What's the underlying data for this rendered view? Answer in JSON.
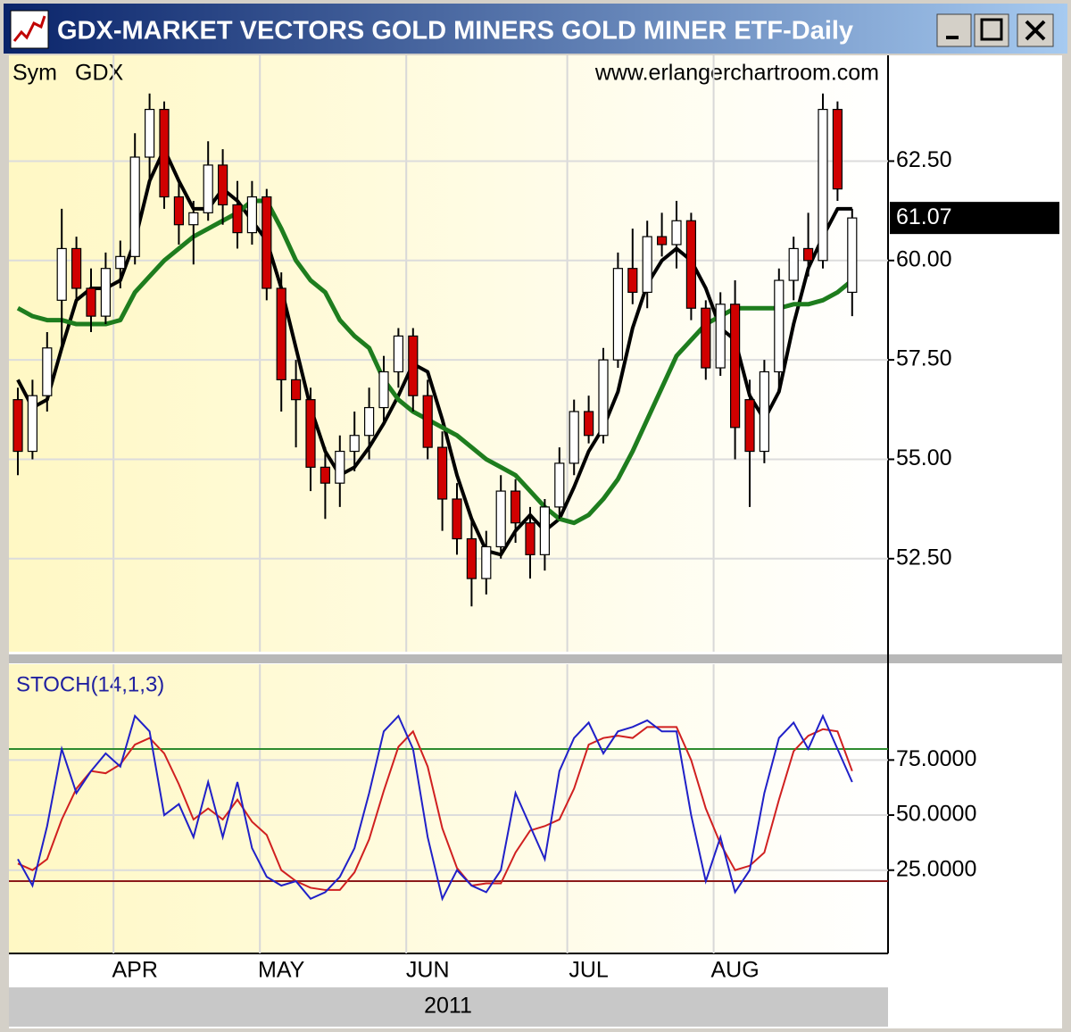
{
  "window_title": "GDX-MARKET VECTORS GOLD MINERS GOLD MINER ETF-Daily",
  "sym_label": "Sym",
  "symbol": "GDX",
  "watermark": "www.erlangerchartroom.com",
  "year": "2011",
  "chart_data": [
    {
      "type": "candlestick",
      "categories": [
        null,
        null,
        null,
        null,
        null,
        null,
        null,
        null,
        "APR",
        null,
        null,
        null,
        null,
        null,
        null,
        null,
        null,
        null,
        "MAY",
        null,
        null,
        null,
        null,
        null,
        null,
        null,
        null,
        null,
        "JUN",
        null,
        null,
        null,
        null,
        null,
        null,
        null,
        null,
        null,
        null,
        "JUL",
        null,
        null,
        null,
        null,
        null,
        null,
        null,
        null,
        null,
        "AUG",
        null,
        null,
        null,
        null,
        null,
        null,
        null,
        null
      ],
      "open": [
        56.5,
        55.2,
        56.6,
        59.0,
        60.3,
        59.3,
        58.6,
        59.8,
        60.1,
        62.6,
        63.8,
        61.6,
        60.9,
        61.2,
        62.4,
        61.4,
        60.7,
        61.6,
        59.3,
        57.0,
        56.5,
        54.8,
        54.4,
        55.2,
        55.6,
        56.3,
        57.2,
        58.1,
        56.6,
        55.3,
        54.0,
        53.0,
        52.0,
        52.8,
        54.2,
        53.4,
        52.6,
        53.8,
        54.9,
        56.2,
        55.6,
        57.5,
        59.8,
        59.2,
        60.6,
        60.4,
        61.0,
        58.8,
        57.3,
        58.9,
        56.5,
        55.2,
        57.2,
        59.5,
        60.3,
        60.0,
        63.8,
        59.2
      ],
      "high": [
        56.8,
        57.0,
        58.2,
        61.3,
        60.6,
        59.8,
        60.2,
        60.5,
        63.2,
        64.2,
        64.0,
        62.0,
        61.5,
        63.0,
        62.8,
        62.0,
        62.0,
        61.8,
        59.7,
        57.5,
        56.8,
        55.3,
        55.6,
        56.2,
        56.8,
        57.6,
        58.3,
        58.3,
        57.0,
        55.7,
        54.4,
        53.5,
        53.2,
        54.6,
        54.5,
        53.8,
        54.0,
        55.3,
        56.5,
        56.6,
        57.8,
        60.2,
        60.8,
        61.0,
        61.2,
        61.5,
        61.2,
        59.0,
        59.2,
        59.5,
        57.0,
        57.5,
        59.8,
        60.6,
        61.2,
        64.2,
        64.0,
        61.3
      ],
      "low": [
        54.6,
        55.0,
        56.2,
        57.8,
        59.0,
        58.2,
        58.4,
        59.3,
        59.9,
        62.0,
        61.3,
        60.4,
        59.9,
        61.0,
        60.9,
        60.3,
        60.4,
        59.0,
        56.2,
        55.3,
        54.2,
        53.5,
        53.8,
        54.7,
        55.0,
        55.9,
        56.8,
        56.2,
        55.0,
        53.2,
        52.6,
        51.3,
        51.6,
        52.5,
        52.9,
        52.0,
        52.2,
        53.5,
        54.6,
        55.4,
        55.4,
        57.3,
        58.9,
        58.8,
        60.1,
        59.8,
        58.5,
        57.0,
        57.1,
        55.0,
        53.8,
        54.9,
        56.8,
        59.0,
        59.6,
        59.8,
        61.5,
        58.6
      ],
      "close": [
        55.2,
        56.6,
        57.8,
        60.3,
        59.3,
        58.6,
        59.8,
        60.1,
        62.6,
        63.8,
        61.6,
        60.9,
        61.2,
        62.4,
        61.4,
        60.7,
        61.6,
        59.3,
        57.0,
        56.5,
        54.8,
        54.4,
        55.2,
        55.6,
        56.3,
        57.2,
        58.1,
        56.6,
        55.3,
        54.0,
        53.0,
        52.0,
        52.8,
        54.2,
        53.4,
        52.6,
        53.8,
        54.9,
        56.2,
        55.6,
        57.5,
        59.8,
        59.2,
        60.6,
        60.4,
        61.0,
        58.8,
        57.3,
        58.9,
        55.8,
        55.2,
        57.2,
        59.5,
        60.3,
        60.0,
        63.8,
        61.8,
        61.07
      ],
      "up_color": "#ffffff",
      "down_color": "#d00000",
      "overlays": [
        {
          "color": "#000000",
          "values": [
            57.0,
            56.3,
            56.5,
            57.8,
            59.0,
            59.3,
            59.3,
            59.5,
            60.5,
            62.0,
            62.8,
            62.0,
            61.3,
            61.3,
            61.8,
            61.5,
            61.0,
            60.5,
            59.3,
            57.8,
            56.3,
            55.2,
            54.6,
            54.8,
            55.3,
            55.9,
            56.6,
            57.4,
            57.2,
            56.0,
            54.6,
            53.5,
            52.7,
            52.6,
            53.2,
            53.6,
            53.2,
            53.5,
            54.3,
            55.2,
            55.8,
            56.7,
            58.3,
            59.4,
            60.0,
            60.3,
            60.0,
            59.3,
            58.3,
            58.0,
            56.6,
            56.0,
            56.7,
            58.4,
            59.8,
            60.6,
            61.3,
            61.3
          ]
        },
        {
          "color": "#1e7d1e",
          "values": [
            58.8,
            58.6,
            58.5,
            58.5,
            58.4,
            58.4,
            58.4,
            58.5,
            59.2,
            59.6,
            60.0,
            60.3,
            60.6,
            60.8,
            61.0,
            61.2,
            61.5,
            61.5,
            60.8,
            60.0,
            59.5,
            59.2,
            58.5,
            58.1,
            57.8,
            57.0,
            56.5,
            56.2,
            56.0,
            55.8,
            55.6,
            55.3,
            55.0,
            54.8,
            54.6,
            54.2,
            53.8,
            53.5,
            53.4,
            53.6,
            54.0,
            54.5,
            55.2,
            56.0,
            56.8,
            57.6,
            58.0,
            58.4,
            58.6,
            58.8,
            58.8,
            58.8,
            58.8,
            58.9,
            58.9,
            59.0,
            59.2,
            59.5
          ]
        }
      ],
      "ylim": [
        50.16,
        65.16
      ],
      "yticks": [
        {
          "value": 52.5,
          "label": "52.50"
        },
        {
          "value": 55,
          "label": "55.00"
        },
        {
          "value": 57.5,
          "label": "57.50"
        },
        {
          "value": 60,
          "label": "60.00"
        },
        {
          "value": 62.5,
          "label": "62.50"
        }
      ],
      "grid": true,
      "last_price": 61.07
    },
    {
      "type": "line",
      "title": "STOCH(14,1,3)",
      "series": [
        {
          "color": "#2020c8",
          "values": [
            30,
            18,
            45,
            80,
            60,
            70,
            78,
            72,
            95,
            88,
            50,
            55,
            40,
            65,
            40,
            65,
            35,
            22,
            18,
            20,
            12,
            15,
            22,
            35,
            60,
            88,
            95,
            80,
            40,
            12,
            25,
            18,
            15,
            25,
            60,
            45,
            30,
            70,
            85,
            92,
            78,
            88,
            90,
            93,
            88,
            88,
            50,
            20,
            40,
            15,
            25,
            60,
            85,
            92,
            80,
            95,
            80,
            65
          ]
        },
        {
          "color": "#d02020",
          "values": [
            28,
            25,
            30,
            48,
            62,
            70,
            69,
            73,
            82,
            85,
            78,
            64,
            48,
            53,
            48,
            57,
            47,
            41,
            25,
            20,
            17,
            16,
            16,
            24,
            39,
            61,
            81,
            88,
            72,
            44,
            26,
            18,
            19,
            19,
            33,
            43,
            45,
            48,
            62,
            82,
            85,
            86,
            85,
            90,
            90,
            90,
            75,
            53,
            37,
            25,
            27,
            33,
            57,
            79,
            86,
            89,
            88,
            70
          ]
        }
      ],
      "levels": [
        {
          "value": 80,
          "color": "#2e8b2e"
        },
        {
          "value": 20,
          "color": "#8b1a1a"
        }
      ],
      "ylim": [
        -12.8,
        118.5
      ],
      "yticks": [
        {
          "value": 25,
          "label": "25.0000"
        },
        {
          "value": 50,
          "label": "50.0000"
        },
        {
          "value": 75,
          "label": "75.0000"
        }
      ],
      "grid": true
    }
  ]
}
